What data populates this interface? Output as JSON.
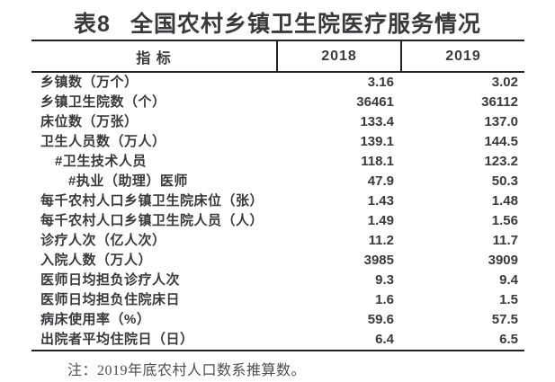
{
  "title": {
    "prefix": "表8",
    "text": "全国农村乡镇卫生院医疗服务情况"
  },
  "table": {
    "header": {
      "indicator": "指 标",
      "year1": "2018",
      "year2": "2019"
    },
    "rows": [
      {
        "label": "乡镇数（万个）",
        "v2018": "3.16",
        "v2019": "3.02"
      },
      {
        "label": "乡镇卫生院数（个）",
        "v2018": "36461",
        "v2019": "36112"
      },
      {
        "label": "床位数（万张）",
        "v2018": "133.4",
        "v2019": "137.0"
      },
      {
        "label": "卫生人员数（万人）",
        "v2018": "139.1",
        "v2019": "144.5"
      },
      {
        "label": "#卫生技术人员",
        "v2018": "118.1",
        "v2019": "123.2"
      },
      {
        "label": "#执业（助理）医师",
        "v2018": "47.9",
        "v2019": "50.3"
      },
      {
        "label": "每千农村人口乡镇卫生院床位（张）",
        "v2018": "1.43",
        "v2019": "1.48"
      },
      {
        "label": "每千农村人口乡镇卫生院人员（人）",
        "v2018": "1.49",
        "v2019": "1.56"
      },
      {
        "label": "诊疗人次（亿人次）",
        "v2018": "11.2",
        "v2019": "11.7"
      },
      {
        "label": "入院人数（万人）",
        "v2018": "3985",
        "v2019": "3909"
      },
      {
        "label": "医师日均担负诊疗人次",
        "v2018": "9.3",
        "v2019": "9.4"
      },
      {
        "label": "医师日均担负住院床日",
        "v2018": "1.6",
        "v2019": "1.5"
      },
      {
        "label": "病床使用率（%）",
        "v2018": "59.6",
        "v2019": "57.5"
      },
      {
        "label": "出院者平均住院日（日）",
        "v2018": "6.4",
        "v2019": "6.5"
      }
    ]
  },
  "note": "注：2019年底农村人口数系推算数。",
  "colors": {
    "text": "#3a3a3c",
    "border": "#222224",
    "note_text": "#4d4d4d",
    "background": "#ffffff"
  }
}
